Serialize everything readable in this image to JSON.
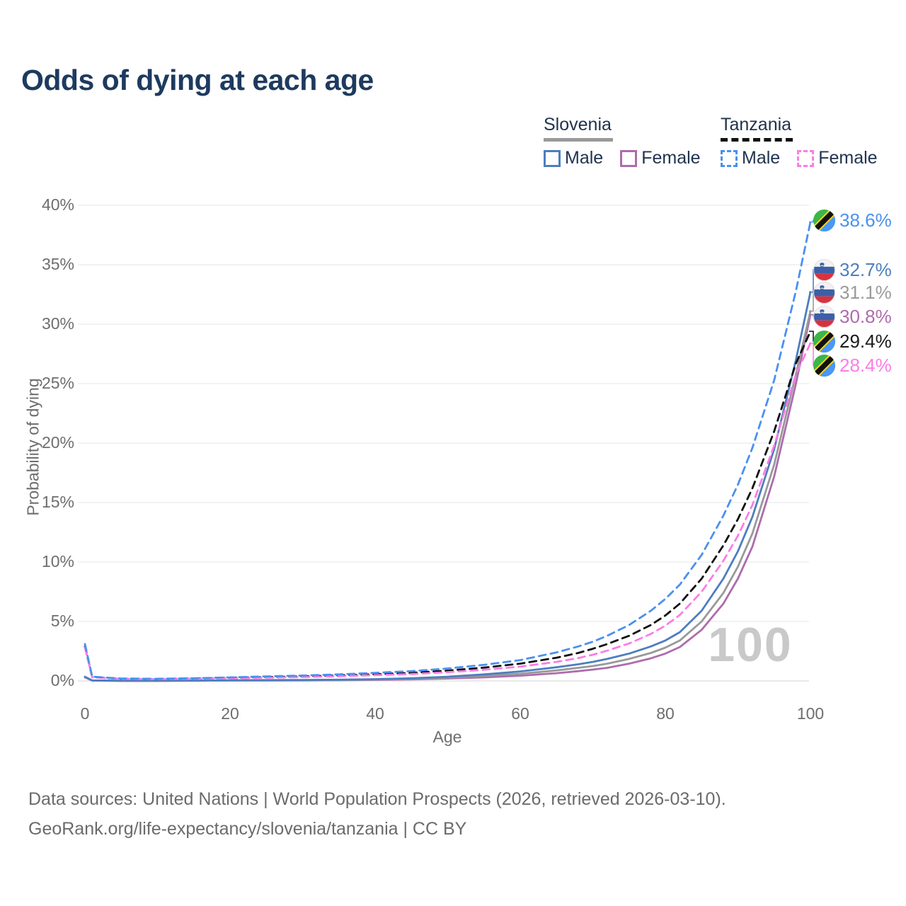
{
  "title": "Odds of dying at each age",
  "legend": {
    "groups": [
      {
        "name": "Slovenia",
        "line_style": "solid",
        "underline_color": "#9a9a9a",
        "items": [
          {
            "label": "Male",
            "color": "#4d7ebf"
          },
          {
            "label": "Female",
            "color": "#ad6cad"
          }
        ]
      },
      {
        "name": "Tanzania",
        "line_style": "dashed",
        "underline_color": "#111111",
        "items": [
          {
            "label": "Male",
            "color": "#4a90f2"
          },
          {
            "label": "Female",
            "color": "#fb7de4"
          }
        ]
      }
    ]
  },
  "watermark": "100",
  "footer": {
    "line1": "Data sources: United Nations | World Population Prospects (2026, retrieved 2026-03-10).",
    "line2": "GeoRank.org/life-expectancy/slovenia/tanzania | CC BY"
  },
  "chart_data": {
    "type": "line",
    "title": "Odds of dying at each age",
    "xlabel": "Age",
    "ylabel": "Probability of dying",
    "xlim": [
      0,
      100
    ],
    "ylim": [
      0,
      40
    ],
    "grid": "horizontal-only",
    "legend_position": "top-right",
    "y_ticks": [
      {
        "v": 0,
        "label": "0%"
      },
      {
        "v": 5,
        "label": "5%"
      },
      {
        "v": 10,
        "label": "10%"
      },
      {
        "v": 15,
        "label": "15%"
      },
      {
        "v": 20,
        "label": "20%"
      },
      {
        "v": 25,
        "label": "25%"
      },
      {
        "v": 30,
        "label": "30%"
      },
      {
        "v": 35,
        "label": "35%"
      },
      {
        "v": 40,
        "label": "40%"
      }
    ],
    "x_ticks": [
      {
        "v": 0,
        "label": "0"
      },
      {
        "v": 20,
        "label": "20"
      },
      {
        "v": 40,
        "label": "40"
      },
      {
        "v": 60,
        "label": "60"
      },
      {
        "v": 80,
        "label": "80"
      },
      {
        "v": 100,
        "label": "100"
      }
    ],
    "ages": [
      0,
      1,
      5,
      10,
      15,
      20,
      25,
      30,
      35,
      40,
      45,
      50,
      55,
      60,
      65,
      68,
      70,
      72,
      75,
      78,
      80,
      82,
      85,
      88,
      90,
      92,
      95,
      98,
      100
    ],
    "series": [
      {
        "id": "si_f",
        "name": "Slovenia Female",
        "country": "Slovenia",
        "sex": "Female",
        "color": "#ad6cad",
        "dash": false,
        "values": [
          0.3,
          0.03,
          0.01,
          0.01,
          0.02,
          0.03,
          0.03,
          0.04,
          0.06,
          0.09,
          0.13,
          0.2,
          0.3,
          0.44,
          0.65,
          0.82,
          0.95,
          1.1,
          1.45,
          1.9,
          2.3,
          2.85,
          4.3,
          6.5,
          8.6,
          11.3,
          17.2,
          25.0,
          30.8
        ]
      },
      {
        "id": "si_b",
        "name": "Slovenia Both sexes",
        "country": "Slovenia",
        "sex": "Both",
        "color": "#999999",
        "dash": false,
        "values": [
          0.32,
          0.03,
          0.01,
          0.01,
          0.02,
          0.04,
          0.05,
          0.06,
          0.08,
          0.12,
          0.17,
          0.27,
          0.42,
          0.6,
          0.88,
          1.1,
          1.25,
          1.45,
          1.85,
          2.35,
          2.8,
          3.4,
          5.0,
          7.4,
          9.6,
          12.4,
          18.2,
          25.8,
          31.1
        ]
      },
      {
        "id": "si_m",
        "name": "Slovenia Male",
        "country": "Slovenia",
        "sex": "Male",
        "color": "#4d7ebf",
        "dash": false,
        "values": [
          0.35,
          0.04,
          0.01,
          0.01,
          0.03,
          0.06,
          0.07,
          0.08,
          0.1,
          0.15,
          0.22,
          0.35,
          0.55,
          0.8,
          1.15,
          1.4,
          1.6,
          1.85,
          2.3,
          2.9,
          3.4,
          4.1,
          5.9,
          8.6,
          10.9,
          13.8,
          19.5,
          27.0,
          32.7
        ]
      },
      {
        "id": "tz_b",
        "name": "Tanzania Both sexes",
        "country": "Tanzania",
        "sex": "Both",
        "color": "#111111",
        "dash": true,
        "values": [
          2.9,
          0.32,
          0.18,
          0.16,
          0.2,
          0.26,
          0.32,
          0.38,
          0.46,
          0.56,
          0.68,
          0.87,
          1.12,
          1.45,
          1.95,
          2.35,
          2.7,
          3.1,
          3.8,
          4.7,
          5.5,
          6.5,
          8.6,
          11.4,
          13.6,
          16.2,
          21.0,
          26.7,
          29.4
        ]
      },
      {
        "id": "tz_f",
        "name": "Tanzania Female",
        "country": "Tanzania",
        "sex": "Female",
        "color": "#fb7de4",
        "dash": true,
        "values": [
          2.8,
          0.3,
          0.17,
          0.15,
          0.18,
          0.22,
          0.27,
          0.32,
          0.39,
          0.48,
          0.58,
          0.73,
          0.94,
          1.2,
          1.6,
          1.92,
          2.2,
          2.55,
          3.15,
          3.95,
          4.65,
          5.55,
          7.5,
          10.1,
          12.2,
          14.8,
          19.8,
          25.8,
          28.4
        ]
      },
      {
        "id": "tz_m",
        "name": "Tanzania Male",
        "country": "Tanzania",
        "sex": "Male",
        "color": "#4a90f2",
        "dash": true,
        "values": [
          3.1,
          0.35,
          0.2,
          0.18,
          0.22,
          0.3,
          0.38,
          0.45,
          0.55,
          0.68,
          0.82,
          1.05,
          1.35,
          1.75,
          2.4,
          2.9,
          3.3,
          3.8,
          4.7,
          5.9,
          6.9,
          8.1,
          10.6,
          13.9,
          16.5,
          19.6,
          25.3,
          32.8,
          38.6
        ]
      }
    ],
    "end_labels": [
      {
        "series": "tz_m",
        "text": "38.6%",
        "value": 38.6,
        "color": "#4a90f2",
        "flag": "tanzania"
      },
      {
        "series": "si_m",
        "text": "32.7%",
        "value": 32.7,
        "color": "#4d7ebf",
        "flag": "slovenia"
      },
      {
        "series": "si_b",
        "text": "31.1%",
        "value": 31.1,
        "color": "#9b9b9b",
        "flag": "slovenia"
      },
      {
        "series": "si_f",
        "text": "30.8%",
        "value": 30.8,
        "color": "#ad6cad",
        "flag": "slovenia"
      },
      {
        "series": "tz_b",
        "text": "29.4%",
        "value": 29.4,
        "color": "#1a1a1a",
        "flag": "tanzania"
      },
      {
        "series": "tz_f",
        "text": "28.4%",
        "value": 28.4,
        "color": "#fb7de4",
        "flag": "tanzania"
      }
    ]
  }
}
